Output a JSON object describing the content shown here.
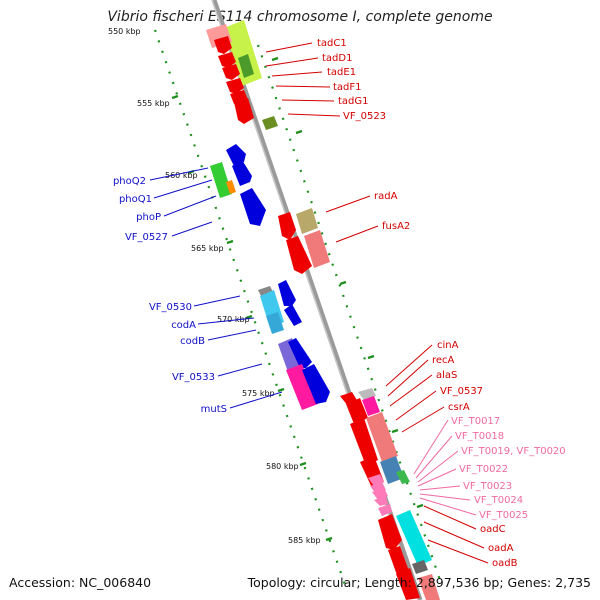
{
  "title": "Vibrio fischeri ES114 chromosome I, complete genome",
  "footer": {
    "accession": "Accession: NC_006840",
    "summary": "Topology: circular; Length: 2,897,536 bp; Genes: 2,735"
  },
  "axis_ticks": [
    "550 kbp",
    "555 kbp",
    "560 kbp",
    "565 kbp",
    "570 kbp",
    "575 kbp",
    "580 kbp",
    "585 kbp"
  ],
  "right_labels": [
    "tadC1",
    "tadD1",
    "tadE1",
    "tadF1",
    "tadG1",
    "VF_0523",
    "radA",
    "fusA2",
    "cinA",
    "recA",
    "alaS",
    "VF_0537",
    "csrA",
    "oadC",
    "oadA",
    "oadB"
  ],
  "left_labels": [
    "phoQ2",
    "phoQ1",
    "phoP",
    "VF_0527",
    "VF_0530",
    "codA",
    "codB",
    "VF_0533",
    "mutS"
  ],
  "pink_labels": [
    "VF_T0017",
    "VF_T0018",
    "VF_T0019, VF_T0020",
    "VF_T0022",
    "VF_T0023",
    "VF_T0024",
    "VF_T0025"
  ],
  "colors": {
    "forward_strand": "#0000dd",
    "reverse_strand": "#ee0000",
    "trna": "#f06aa0",
    "backbone": "#888888",
    "tick_green": "#1f8f1f"
  }
}
